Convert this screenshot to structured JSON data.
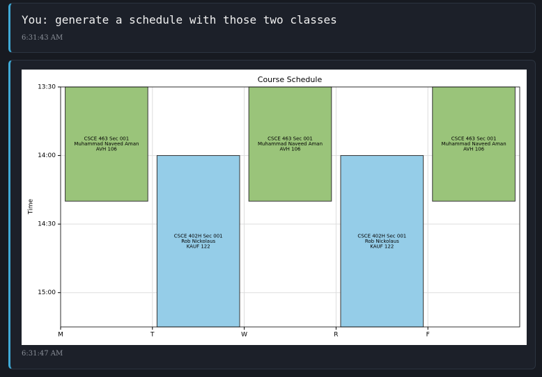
{
  "messages": [
    {
      "text": "You: generate a schedule with those two classes",
      "time": "6:31:43 AM"
    },
    {
      "time": "6:31:47 AM"
    }
  ],
  "chart_data": {
    "type": "schedule",
    "title": "Course Schedule",
    "ylabel": "Time",
    "xlim": [
      0,
      5
    ],
    "xticks": [
      {
        "value": 0,
        "label": "M"
      },
      {
        "value": 1,
        "label": "T"
      },
      {
        "value": 2,
        "label": "W"
      },
      {
        "value": 3,
        "label": "R"
      },
      {
        "value": 4,
        "label": "F"
      }
    ],
    "ylim": [
      13.5,
      15.25
    ],
    "y_inverted": true,
    "yticks": [
      {
        "value": 13.5,
        "label": "13:30"
      },
      {
        "value": 14,
        "label": "14:00"
      },
      {
        "value": 14.5,
        "label": "14:30"
      },
      {
        "value": 15,
        "label": "15:00"
      }
    ],
    "grid": true,
    "bar_width": 0.9,
    "courses": [
      {
        "color": "#9ac47a",
        "lines": [
          "CSCE 463 Sec 001",
          "Muhammad Naveed Aman",
          "AVH 106"
        ],
        "blocks": [
          {
            "x": 0.5,
            "start": 13.5,
            "end": 14.333
          },
          {
            "x": 2.5,
            "start": 13.5,
            "end": 14.333
          },
          {
            "x": 4.5,
            "start": 13.5,
            "end": 14.333
          }
        ]
      },
      {
        "color": "#95cde8",
        "lines": [
          "CSCE 402H Sec 001",
          "Rob Nickolaus",
          "KAUF 122"
        ],
        "blocks": [
          {
            "x": 1.5,
            "start": 14,
            "end": 15.25
          },
          {
            "x": 3.5,
            "start": 14,
            "end": 15.25
          }
        ]
      }
    ]
  }
}
